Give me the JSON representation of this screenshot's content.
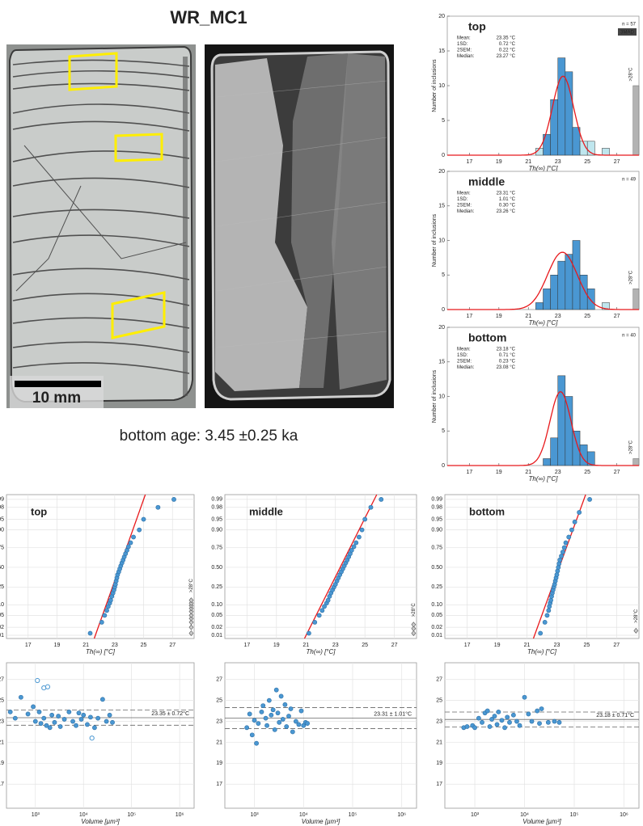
{
  "title": "WR_MC1",
  "scale_bar": "10 mm",
  "age": "bottom age: 3.45 ±0.25 ka",
  "chart_data": [
    {
      "type": "histogram",
      "title": "top",
      "n_label": "n = 57",
      "method_label": "3MAD",
      "stats": [
        [
          "Mean:",
          "23.35 °C"
        ],
        [
          "1SD:",
          "0.72 °C"
        ],
        [
          "2SEM:",
          "0.22 °C"
        ],
        [
          "Median:",
          "23.27 °C"
        ]
      ],
      "bins": [
        21.5,
        22,
        22.5,
        23,
        23.5,
        24,
        24.5,
        25,
        25.5,
        26,
        26.5
      ],
      "series": [
        {
          "color": "#4a97d2",
          "values": [
            0,
            3,
            8,
            14,
            12,
            4,
            0,
            0,
            0,
            0
          ]
        },
        {
          "color": "#bfe6ee",
          "values": [
            1,
            0,
            0,
            0,
            0,
            0,
            2,
            2,
            0,
            1
          ]
        }
      ],
      "overflow": {
        "label": ">28°C",
        "x": [
          28.1,
          28.5
        ],
        "value": 10,
        "color": "#b3b3b3"
      },
      "fit": {
        "mean": 23.35,
        "sd": 0.72,
        "color": "#e8191c"
      },
      "xlim": [
        15.5,
        28.5
      ],
      "ylim": [
        0,
        20
      ],
      "xticks": [
        17,
        19,
        21,
        23,
        25,
        27
      ],
      "yticks": [
        0,
        5,
        10,
        15,
        20
      ],
      "xlabel": "Th(∞) [°C]",
      "ylabel": "Number of inclusions",
      "grid": false
    },
    {
      "type": "histogram",
      "title": "middle",
      "n_label": "n = 49",
      "stats": [
        [
          "Mean:",
          "23.31 °C"
        ],
        [
          "1SD:",
          "1.01 °C"
        ],
        [
          "2SEM:",
          "0.30 °C"
        ],
        [
          "Median:",
          "23.26 °C"
        ]
      ],
      "bins": [
        21.5,
        22,
        22.5,
        23,
        23.5,
        24,
        24.5,
        25,
        25.5,
        26,
        26.5
      ],
      "series": [
        {
          "color": "#4a97d2",
          "values": [
            1,
            3,
            5,
            7,
            8,
            10,
            5,
            3,
            0,
            0
          ]
        },
        {
          "color": "#bfe6ee",
          "values": [
            0,
            0,
            0,
            0,
            0,
            0,
            0,
            0,
            0,
            1
          ]
        }
      ],
      "overflow": {
        "label": ">28°C",
        "x": [
          28.1,
          28.5
        ],
        "value": 3,
        "color": "#b3b3b3"
      },
      "fit": {
        "mean": 23.31,
        "sd": 1.01,
        "color": "#e8191c"
      },
      "xlim": [
        15.5,
        28.5
      ],
      "ylim": [
        0,
        20
      ],
      "xticks": [
        17,
        19,
        21,
        23,
        25,
        27
      ],
      "yticks": [
        0,
        5,
        10,
        15,
        20
      ],
      "xlabel": "Th(∞) [°C]",
      "ylabel": "Number of inclusions",
      "grid": false
    },
    {
      "type": "histogram",
      "title": "bottom",
      "n_label": "n = 40",
      "stats": [
        [
          "Mean:",
          "23.18 °C"
        ],
        [
          "1SD:",
          "0.71 °C"
        ],
        [
          "2SEM:",
          "0.23 °C"
        ],
        [
          "Median:",
          "23.08 °C"
        ]
      ],
      "bins": [
        21.5,
        22,
        22.5,
        23,
        23.5,
        24,
        24.5,
        25,
        25.5,
        26,
        26.5
      ],
      "series": [
        {
          "color": "#4a97d2",
          "values": [
            0,
            1,
            4,
            13,
            10,
            5,
            3,
            2,
            0,
            0
          ]
        }
      ],
      "overflow": {
        "label": ">28°C",
        "x": [
          28.1,
          28.5
        ],
        "value": 1,
        "color": "#b3b3b3"
      },
      "fit": {
        "mean": 23.18,
        "sd": 0.71,
        "color": "#e8191c"
      },
      "xlim": [
        15.5,
        28.5
      ],
      "ylim": [
        0,
        20
      ],
      "xticks": [
        17,
        19,
        21,
        23,
        25,
        27
      ],
      "yticks": [
        0,
        5,
        10,
        15,
        20
      ],
      "xlabel": "Th(∞) [°C]",
      "ylabel": "Number of inclusions",
      "grid": false
    },
    {
      "type": "probability",
      "title": "top",
      "color": "#4a97d2",
      "x": [
        21.3,
        22.1,
        22.3,
        22.45,
        22.55,
        22.65,
        22.72,
        22.8,
        22.88,
        22.95,
        23.0,
        23.05,
        23.1,
        23.15,
        23.2,
        23.28,
        23.35,
        23.42,
        23.5,
        23.58,
        23.66,
        23.75,
        23.85,
        23.95,
        24.1,
        24.3,
        24.7,
        25.0,
        26.0,
        27.1
      ],
      "values": [
        0.012,
        0.03,
        0.05,
        0.07,
        0.09,
        0.11,
        0.13,
        0.16,
        0.19,
        0.22,
        0.25,
        0.28,
        0.32,
        0.36,
        0.4,
        0.44,
        0.48,
        0.52,
        0.56,
        0.6,
        0.64,
        0.68,
        0.72,
        0.76,
        0.8,
        0.85,
        0.9,
        0.95,
        0.98,
        0.99
      ],
      "fit_line": {
        "x": [
          21.58,
          25.12
        ],
        "values": [
          0.0074,
          0.9936
        ],
        "color": "#e8191c"
      },
      "overflow": {
        "label": ">28°C",
        "x": 28.3,
        "values": [
          0.012,
          0.02,
          0.03,
          0.04,
          0.05,
          0.065,
          0.08,
          0.095,
          0.11,
          0.13
        ]
      },
      "xlim": [
        15.5,
        28.5
      ],
      "ylim": [
        0.0074,
        0.9936
      ],
      "xticks": [
        17,
        19,
        21,
        23,
        25,
        27
      ],
      "yticks": [
        0.01,
        0.02,
        0.05,
        {
          "value": 0.1,
          "label": "0.10"
        },
        0.25,
        {
          "value": 0.5,
          "label": "0.50"
        },
        0.75,
        {
          "value": 0.9,
          "label": "0.90"
        },
        0.95,
        0.98,
        0.99
      ],
      "xlabel": "Th(∞) [°C]",
      "grid": true
    },
    {
      "type": "probability",
      "title": "middle",
      "color": "#4a97d2",
      "x": [
        21.2,
        21.6,
        21.9,
        22.1,
        22.25,
        22.4,
        22.5,
        22.6,
        22.7,
        22.8,
        22.9,
        23.0,
        23.1,
        23.2,
        23.3,
        23.4,
        23.5,
        23.6,
        23.7,
        23.8,
        23.9,
        24.0,
        24.1,
        24.25,
        24.4,
        24.6,
        24.8,
        25.0,
        25.4,
        26.1
      ],
      "values": [
        0.012,
        0.03,
        0.05,
        0.07,
        0.09,
        0.11,
        0.13,
        0.16,
        0.19,
        0.22,
        0.25,
        0.28,
        0.32,
        0.36,
        0.4,
        0.44,
        0.48,
        0.52,
        0.56,
        0.6,
        0.64,
        0.68,
        0.72,
        0.76,
        0.8,
        0.85,
        0.9,
        0.95,
        0.98,
        0.99
      ],
      "fit_line": {
        "x": [
          20.9,
          25.8
        ],
        "values": [
          0.0074,
          0.9936
        ],
        "color": "#e8191c"
      },
      "overflow": {
        "label": ">28°C",
        "x": 28.3,
        "values": [
          0.012,
          0.018,
          0.025
        ]
      },
      "xlim": [
        15.5,
        28.5
      ],
      "ylim": [
        0.0074,
        0.9936
      ],
      "xticks": [
        17,
        19,
        21,
        23,
        25,
        27
      ],
      "yticks": [
        0.01,
        0.02,
        0.05,
        {
          "value": 0.1,
          "label": "0.10"
        },
        0.25,
        {
          "value": 0.5,
          "label": "0.50"
        },
        0.75,
        {
          "value": 0.9,
          "label": "0.90"
        },
        0.95,
        0.98,
        0.99
      ],
      "xlabel": "Th(∞) [°C]",
      "grid": true
    },
    {
      "type": "probability",
      "title": "bottom",
      "color": "#4a97d2",
      "x": [
        21.9,
        22.2,
        22.35,
        22.45,
        22.5,
        22.55,
        22.6,
        22.65,
        22.7,
        22.75,
        22.8,
        22.85,
        22.9,
        22.95,
        23.0,
        23.05,
        23.1,
        23.15,
        23.2,
        23.3,
        23.4,
        23.5,
        23.6,
        23.8,
        24.0,
        24.2,
        24.5,
        25.2
      ],
      "values": [
        0.012,
        0.03,
        0.05,
        0.07,
        0.09,
        0.11,
        0.13,
        0.16,
        0.19,
        0.22,
        0.25,
        0.28,
        0.32,
        0.36,
        0.4,
        0.45,
        0.5,
        0.55,
        0.6,
        0.65,
        0.7,
        0.75,
        0.8,
        0.85,
        0.9,
        0.94,
        0.97,
        0.99
      ],
      "fit_line": {
        "x": [
          21.43,
          24.93
        ],
        "values": [
          0.0074,
          0.9936
        ],
        "color": "#e8191c"
      },
      "overflow": {
        "label": ">28°C",
        "x": 28.3,
        "values": [
          0.015
        ]
      },
      "xlim": [
        15.5,
        28.5
      ],
      "ylim": [
        0.0074,
        0.9936
      ],
      "xticks": [
        17,
        19,
        21,
        23,
        25,
        27
      ],
      "yticks": [
        0.01,
        0.02,
        0.05,
        {
          "value": 0.1,
          "label": "0.10"
        },
        0.25,
        {
          "value": 0.5,
          "label": "0.50"
        },
        0.75,
        {
          "value": 0.9,
          "label": "0.90"
        },
        0.95,
        0.98,
        0.99
      ],
      "xlabel": "Th(∞) [°C]",
      "grid": true
    },
    {
      "type": "scatter",
      "log_x": true,
      "series": [
        {
          "color": "#4a97d2",
          "filled": true,
          "x": [
            300,
            380,
            500,
            700,
            900,
            1000,
            1200,
            1300,
            1500,
            1700,
            2000,
            2200,
            2500,
            3000,
            3300,
            4000,
            5000,
            6000,
            7000,
            8000,
            9000,
            10000,
            12000,
            14000,
            17000,
            20000,
            25000,
            30000,
            35000,
            40000
          ],
          "values": [
            23.9,
            23.3,
            25.3,
            23.7,
            24.4,
            23.0,
            23.9,
            22.8,
            23.3,
            22.6,
            22.4,
            23.6,
            22.9,
            23.5,
            22.5,
            23.2,
            23.9,
            23.0,
            22.6,
            23.8,
            23.2,
            23.6,
            22.7,
            23.4,
            22.4,
            23.3,
            25.1,
            23.0,
            23.6,
            22.9
          ]
        },
        {
          "color": "#4a97d2",
          "filled": false,
          "x": [
            1100,
            1500,
            1800,
            15000
          ],
          "values": [
            26.9,
            26.2,
            26.3,
            21.4
          ]
        }
      ],
      "hlines": [
        {
          "value": 23.35,
          "dash": false
        },
        {
          "value": 24.07,
          "dash": true
        },
        {
          "value": 22.63,
          "dash": true
        }
      ],
      "annotation": "23.35 ± 0.72°C",
      "xlim": [
        250,
        2000000
      ],
      "ylim": [
        14.7,
        28.6
      ],
      "xticks": [
        {
          "value": 1000,
          "label": "10³"
        },
        {
          "value": 10000,
          "label": "10⁴"
        },
        {
          "value": 100000,
          "label": "10⁵"
        },
        {
          "value": 1000000,
          "label": "10⁶"
        }
      ],
      "yticks": [
        17,
        19,
        21,
        23,
        25,
        27
      ],
      "xlabel": "Volume [µm³]",
      "grid": true
    },
    {
      "type": "scatter",
      "log_x": true,
      "series": [
        {
          "color": "#4a97d2",
          "filled": true,
          "x": [
            700,
            800,
            900,
            1000,
            1100,
            1200,
            1400,
            1500,
            1700,
            1800,
            2000,
            2200,
            2400,
            2600,
            2800,
            3000,
            3200,
            3500,
            3800,
            4200,
            4500,
            5000,
            5500,
            6000,
            7000,
            8000,
            9000,
            10000,
            11000,
            12000
          ],
          "values": [
            22.4,
            23.7,
            21.7,
            23.1,
            20.9,
            22.8,
            23.9,
            24.5,
            23.3,
            22.6,
            25.0,
            23.6,
            24.1,
            22.2,
            26.0,
            23.8,
            22.9,
            25.4,
            23.2,
            24.6,
            22.5,
            23.5,
            24.2,
            22.0,
            23.0,
            22.7,
            24.0,
            22.6,
            22.9,
            22.8
          ]
        }
      ],
      "hlines": [
        {
          "value": 23.31,
          "dash": false
        },
        {
          "value": 24.32,
          "dash": true
        },
        {
          "value": 22.3,
          "dash": true
        }
      ],
      "annotation": "23.31 ± 1.01°C",
      "xlim": [
        250,
        2000000
      ],
      "ylim": [
        14.7,
        28.6
      ],
      "xticks": [
        {
          "value": 1000,
          "label": "10³"
        },
        {
          "value": 10000,
          "label": "10⁴"
        },
        {
          "value": 100000,
          "label": "10⁵"
        },
        {
          "value": 1000000,
          "label": "10⁶"
        }
      ],
      "yticks": [
        17,
        19,
        21,
        23,
        25,
        27
      ],
      "xlabel": "Volume [µm³]",
      "grid": true
    },
    {
      "type": "scatter",
      "log_x": true,
      "series": [
        {
          "color": "#4a97d2",
          "filled": true,
          "x": [
            600,
            700,
            900,
            1000,
            1200,
            1400,
            1600,
            1800,
            2000,
            2200,
            2500,
            2800,
            3000,
            3500,
            4000,
            4500,
            5000,
            6000,
            7000,
            8000,
            10000,
            12000,
            14000,
            18000,
            20000,
            22000,
            30000,
            40000,
            50000
          ],
          "values": [
            22.4,
            22.5,
            22.6,
            22.4,
            23.3,
            22.9,
            23.8,
            24.0,
            22.5,
            23.2,
            23.5,
            22.7,
            23.9,
            23.1,
            22.4,
            23.4,
            22.9,
            23.6,
            23.0,
            22.6,
            25.3,
            23.7,
            23.0,
            24.0,
            22.8,
            24.2,
            22.9,
            23.0,
            22.9
          ]
        }
      ],
      "hlines": [
        {
          "value": 23.18,
          "dash": false
        },
        {
          "value": 23.89,
          "dash": true
        },
        {
          "value": 22.47,
          "dash": true
        }
      ],
      "annotation": "23.18 ± 0.71°C",
      "xlim": [
        250,
        2000000
      ],
      "ylim": [
        14.7,
        28.6
      ],
      "xticks": [
        {
          "value": 1000,
          "label": "10³"
        },
        {
          "value": 10000,
          "label": "10⁴"
        },
        {
          "value": 100000,
          "label": "10⁵"
        },
        {
          "value": 1000000,
          "label": "10⁶"
        }
      ],
      "yticks": [
        17,
        19,
        21,
        23,
        25,
        27
      ],
      "xlabel": "Volume [µm³]",
      "grid": true
    }
  ]
}
